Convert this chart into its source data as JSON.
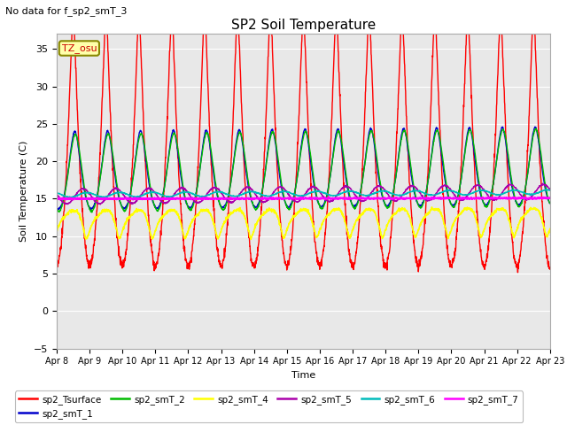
{
  "title": "SP2 Soil Temperature",
  "subtitle": "No data for f_sp2_smT_3",
  "ylabel": "Soil Temperature (C)",
  "xlabel": "Time",
  "tz_label": "TZ_osu",
  "ylim": [
    -5,
    37
  ],
  "yticks": [
    -5,
    0,
    5,
    10,
    15,
    20,
    25,
    30,
    35
  ],
  "background_color": "#e8e8e8",
  "series": {
    "sp2_Tsurface": {
      "color": "#ff0000",
      "linewidth": 1.0
    },
    "sp2_smT_1": {
      "color": "#0000cc",
      "linewidth": 1.0
    },
    "sp2_smT_2": {
      "color": "#00bb00",
      "linewidth": 1.0
    },
    "sp2_smT_4": {
      "color": "#ffff00",
      "linewidth": 1.2
    },
    "sp2_smT_5": {
      "color": "#aa00aa",
      "linewidth": 1.0
    },
    "sp2_smT_6": {
      "color": "#00bbbb",
      "linewidth": 1.0
    },
    "sp2_smT_7": {
      "color": "#ff00ff",
      "linewidth": 1.5
    }
  },
  "legend_order": [
    "sp2_Tsurface",
    "sp2_smT_1",
    "sp2_smT_2",
    "sp2_smT_4",
    "sp2_smT_5",
    "sp2_smT_6",
    "sp2_smT_7"
  ],
  "n_days": 15,
  "figsize": [
    6.4,
    4.8
  ],
  "dpi": 100
}
